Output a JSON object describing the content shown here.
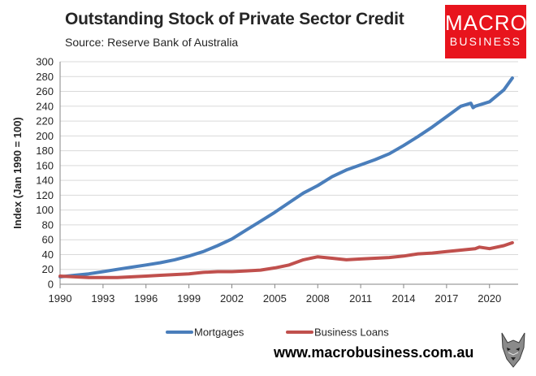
{
  "header": {
    "title": "Outstanding Stock of Private Sector Credit",
    "subtitle": "Source: Reserve Bank of Australia"
  },
  "logo": {
    "line1": "MACRO",
    "line2": "BUSINESS",
    "color": "#e8141d"
  },
  "footer": {
    "url": "www.macrobusiness.com.au",
    "mascot_icon": "wolf-icon"
  },
  "chart_data": {
    "type": "line",
    "title": "Outstanding Stock of Private Sector Credit",
    "subtitle": "Source: Reserve Bank of Australia",
    "xlabel": "",
    "ylabel": "Index (Jan 1990 = 100)",
    "xlim": [
      1990,
      2022
    ],
    "ylim": [
      0,
      300
    ],
    "x_ticks": [
      "1990",
      "1993",
      "1996",
      "1999",
      "2002",
      "2005",
      "2008",
      "2011",
      "2014",
      "2017",
      "2020"
    ],
    "y_ticks": [
      "0",
      "20",
      "40",
      "60",
      "80",
      "100",
      "120",
      "140",
      "160",
      "180",
      "200",
      "220",
      "240",
      "260",
      "280",
      "300"
    ],
    "grid": "horizontal",
    "legend": "bottom",
    "series": [
      {
        "name": "Mortgages",
        "color": "#4a7ebb",
        "points": [
          [
            1990,
            10
          ],
          [
            1991,
            12
          ],
          [
            1992,
            14
          ],
          [
            1993,
            17
          ],
          [
            1994,
            20
          ],
          [
            1995,
            23
          ],
          [
            1996,
            26
          ],
          [
            1997,
            29
          ],
          [
            1998,
            33
          ],
          [
            1999,
            38
          ],
          [
            2000,
            44
          ],
          [
            2001,
            52
          ],
          [
            2002,
            61
          ],
          [
            2003,
            73
          ],
          [
            2004,
            85
          ],
          [
            2005,
            97
          ],
          [
            2006,
            110
          ],
          [
            2007,
            123
          ],
          [
            2008,
            133
          ],
          [
            2009,
            145
          ],
          [
            2010,
            154
          ],
          [
            2011,
            161
          ],
          [
            2012,
            168
          ],
          [
            2013,
            176
          ],
          [
            2014,
            187
          ],
          [
            2015,
            199
          ],
          [
            2016,
            212
          ],
          [
            2017,
            226
          ],
          [
            2018,
            240
          ],
          [
            2018.7,
            244
          ],
          [
            2018.85,
            238
          ],
          [
            2019,
            240
          ],
          [
            2020,
            246
          ],
          [
            2021,
            262
          ],
          [
            2021.6,
            278
          ]
        ]
      },
      {
        "name": "Business Loans",
        "color": "#c0504d",
        "points": [
          [
            1990,
            11
          ],
          [
            1991,
            10
          ],
          [
            1992,
            9
          ],
          [
            1993,
            9
          ],
          [
            1994,
            9
          ],
          [
            1995,
            10
          ],
          [
            1996,
            11
          ],
          [
            1997,
            12
          ],
          [
            1998,
            13
          ],
          [
            1999,
            14
          ],
          [
            2000,
            16
          ],
          [
            2001,
            17
          ],
          [
            2002,
            17
          ],
          [
            2003,
            18
          ],
          [
            2004,
            19
          ],
          [
            2005,
            22
          ],
          [
            2006,
            26
          ],
          [
            2007,
            33
          ],
          [
            2008,
            37
          ],
          [
            2009,
            35
          ],
          [
            2010,
            33
          ],
          [
            2011,
            34
          ],
          [
            2012,
            35
          ],
          [
            2013,
            36
          ],
          [
            2014,
            38
          ],
          [
            2015,
            41
          ],
          [
            2016,
            42
          ],
          [
            2017,
            44
          ],
          [
            2018,
            46
          ],
          [
            2019,
            48
          ],
          [
            2019.3,
            50
          ],
          [
            2020,
            48
          ],
          [
            2021,
            52
          ],
          [
            2021.6,
            56
          ]
        ]
      }
    ]
  }
}
